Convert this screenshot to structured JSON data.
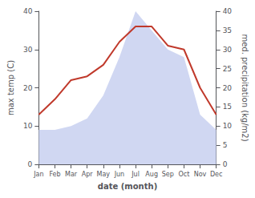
{
  "chart_data": {
    "type": "line",
    "xlabel": "date (month)",
    "ylabel": "max temp (C)",
    "y2label": "med. precipitation (kg/m2)",
    "categories": [
      "Jan",
      "Feb",
      "Mar",
      "Apr",
      "May",
      "Jun",
      "Jul",
      "Aug",
      "Sep",
      "Oct",
      "Nov",
      "Dec"
    ],
    "series": [
      {
        "type": "area",
        "axis": "y2",
        "color": "#c8d0f0",
        "values": [
          9,
          9,
          10,
          12,
          18,
          28,
          40,
          35,
          30,
          28,
          13,
          9
        ]
      },
      {
        "type": "line",
        "color": "#c0392b",
        "values": [
          13,
          17,
          22,
          23,
          26,
          32,
          36,
          36,
          31,
          30,
          20,
          13
        ]
      }
    ],
    "ylim": [
      0,
      40
    ],
    "yticks": [
      0,
      10,
      20,
      30,
      40
    ],
    "y2lim": [
      0,
      40
    ],
    "y2ticks": [
      0,
      5,
      10,
      15,
      20,
      25,
      30,
      35,
      40
    ],
    "grid": false
  }
}
